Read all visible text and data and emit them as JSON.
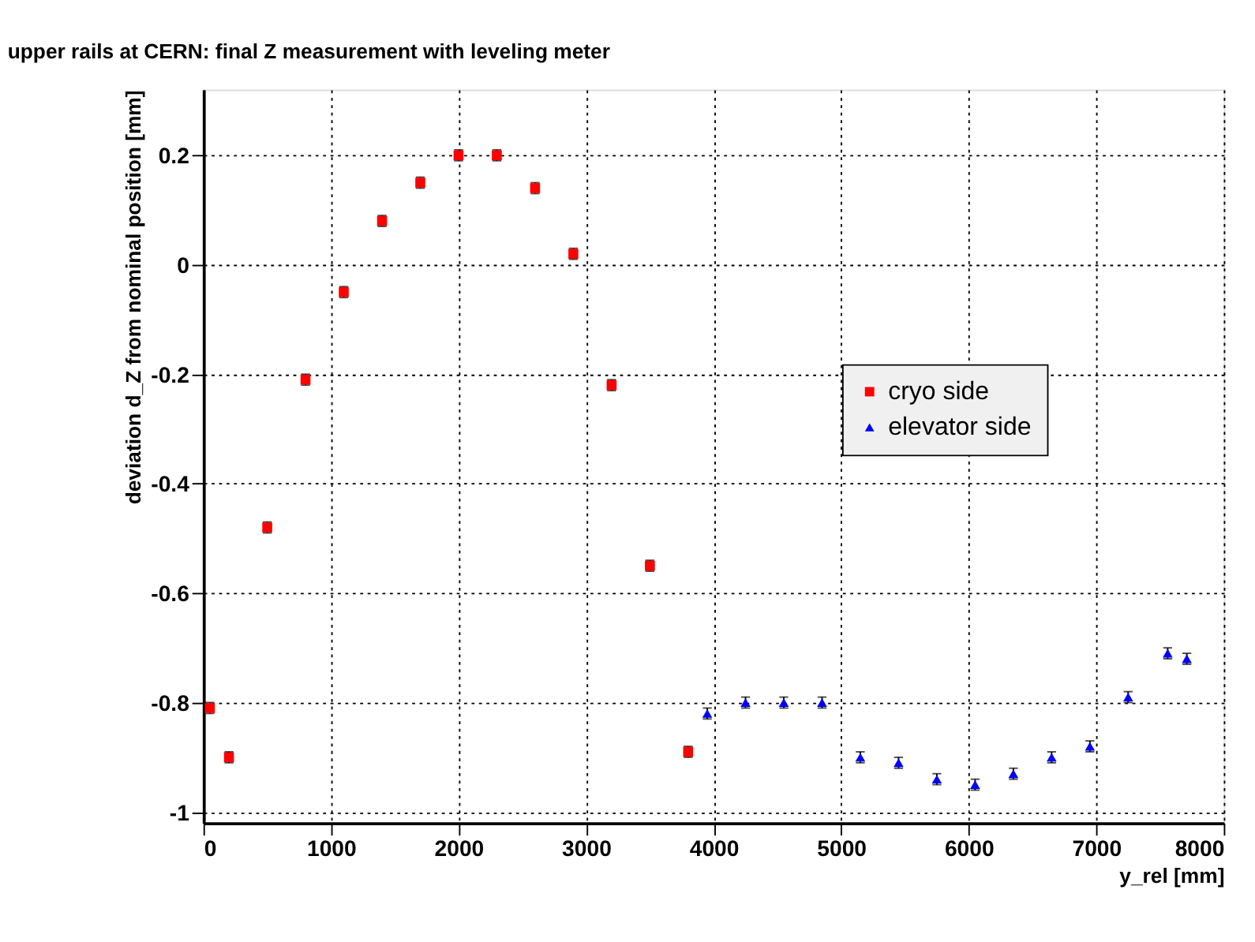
{
  "chart_data": {
    "type": "scatter",
    "title": "upper rails at CERN: final Z measurement with leveling meter",
    "xlabel": "y_rel [mm]",
    "ylabel": "deviation d_Z from nominal position [mm]",
    "xlim": [
      0,
      8000
    ],
    "xticks": [
      0,
      1000,
      2000,
      3000,
      4000,
      5000,
      6000,
      7000,
      8000
    ],
    "ylim": [
      -1.02,
      0.32
    ],
    "yticks": [
      -1,
      -0.8,
      -0.6,
      -0.4,
      -0.2,
      0,
      0.2
    ],
    "grid": true,
    "legend": "right",
    "series": [
      {
        "name": "cryo side",
        "color": "#ff0000",
        "marker": "square",
        "x": [
          50,
          200,
          500,
          800,
          1100,
          1400,
          1700,
          2000,
          2300,
          2600,
          2900,
          3200,
          3500,
          3800
        ],
        "values": [
          -0.81,
          -0.9,
          -0.48,
          -0.21,
          -0.05,
          0.08,
          0.15,
          0.2,
          0.2,
          0.14,
          0.02,
          -0.22,
          -0.55,
          -0.89
        ],
        "errors": [
          0.01,
          0.01,
          0.01,
          0.01,
          0.01,
          0.01,
          0.01,
          0.01,
          0.01,
          0.01,
          0.01,
          0.01,
          0.01,
          0.01
        ]
      },
      {
        "name": "elevator side",
        "color": "#0000ff",
        "marker": "triangle",
        "x": [
          3950,
          4250,
          4550,
          4850,
          5150,
          5450,
          5750,
          6050,
          6350,
          6650,
          6950,
          7250,
          7560,
          7710
        ],
        "values": [
          -0.82,
          -0.8,
          -0.8,
          -0.8,
          -0.9,
          -0.91,
          -0.94,
          -0.95,
          -0.93,
          -0.9,
          -0.88,
          -0.79,
          -0.71,
          -0.72
        ],
        "errors": [
          0.01,
          0.01,
          0.01,
          0.01,
          0.01,
          0.01,
          0.01,
          0.01,
          0.01,
          0.01,
          0.01,
          0.01,
          0.01,
          0.01
        ]
      }
    ]
  }
}
